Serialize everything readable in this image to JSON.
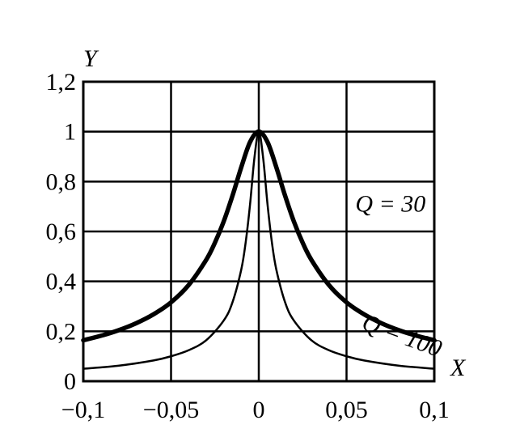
{
  "chart_data": {
    "type": "line",
    "title": "",
    "xlabel": "X",
    "ylabel": "Y",
    "xlim": [
      -0.1,
      0.1
    ],
    "ylim": [
      0,
      1.2
    ],
    "x_ticks": [
      -0.1,
      -0.05,
      0,
      0.05,
      0.1
    ],
    "x_tick_labels": [
      "−0,1",
      "−0,05",
      "0",
      "0,05",
      "0,1"
    ],
    "y_ticks": [
      0,
      0.2,
      0.4,
      0.6,
      0.8,
      1,
      1.2
    ],
    "y_tick_labels": [
      "0",
      "0,2",
      "0,4",
      "0,6",
      "0,8",
      "1",
      "1,2"
    ],
    "grid": true,
    "series": [
      {
        "name": "Q = 30",
        "x": [
          -0.1,
          -0.09,
          -0.08,
          -0.07,
          -0.06,
          -0.05,
          -0.04,
          -0.03,
          -0.025,
          -0.02,
          -0.015,
          -0.01,
          -0.005,
          0,
          0.005,
          0.01,
          0.015,
          0.02,
          0.025,
          0.03,
          0.04,
          0.05,
          0.06,
          0.07,
          0.08,
          0.09,
          0.1
        ],
        "y": [
          0.164,
          0.182,
          0.204,
          0.232,
          0.268,
          0.316,
          0.385,
          0.486,
          0.555,
          0.64,
          0.743,
          0.857,
          0.958,
          1.0,
          0.958,
          0.857,
          0.743,
          0.64,
          0.555,
          0.486,
          0.385,
          0.316,
          0.268,
          0.232,
          0.204,
          0.182,
          0.164
        ],
        "stroke_width": 5.5
      },
      {
        "name": "Q = 100",
        "x": [
          -0.1,
          -0.08,
          -0.06,
          -0.05,
          -0.04,
          -0.03,
          -0.02,
          -0.015,
          -0.01,
          -0.0075,
          -0.005,
          -0.0025,
          0,
          0.0025,
          0.005,
          0.0075,
          0.01,
          0.015,
          0.02,
          0.03,
          0.04,
          0.05,
          0.06,
          0.08,
          0.1
        ],
        "y": [
          0.05,
          0.062,
          0.083,
          0.1,
          0.124,
          0.164,
          0.243,
          0.316,
          0.447,
          0.555,
          0.707,
          0.894,
          1.0,
          0.894,
          0.707,
          0.555,
          0.447,
          0.316,
          0.243,
          0.164,
          0.124,
          0.1,
          0.083,
          0.062,
          0.05
        ],
        "stroke_width": 2.5
      }
    ],
    "annotations": [
      {
        "text": "Q = 30",
        "x": 0.055,
        "y": 0.68,
        "rotation": 0
      },
      {
        "text": "Q = 100",
        "x": 0.058,
        "y": 0.21,
        "rotation": 20
      }
    ]
  }
}
